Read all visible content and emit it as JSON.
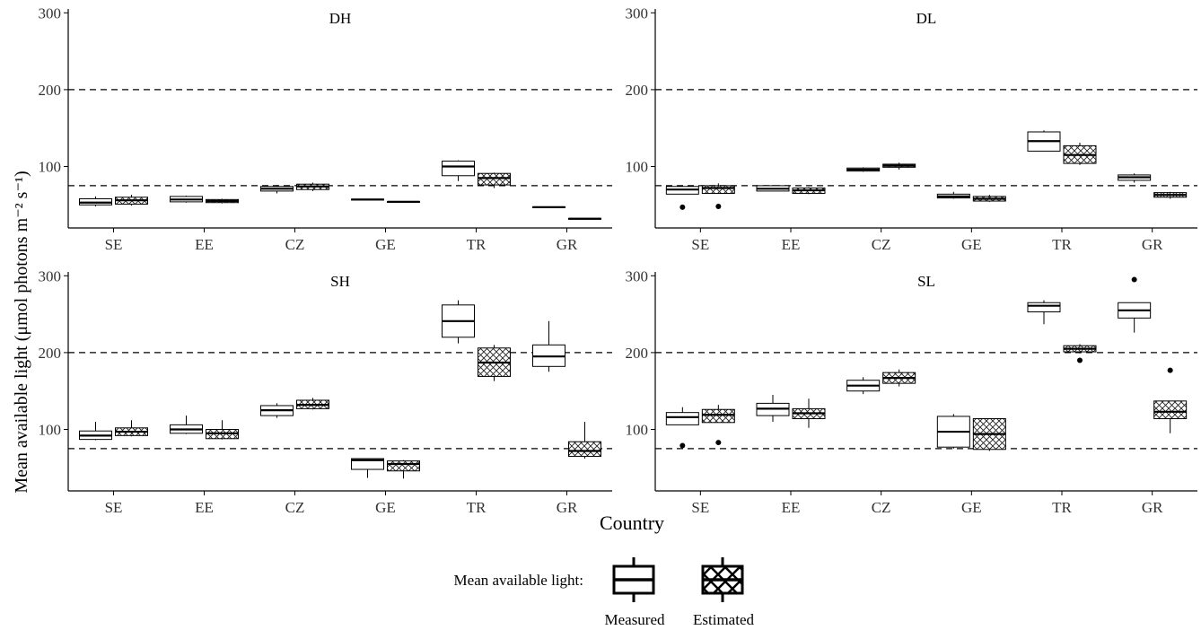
{
  "chart_data": {
    "type": "boxplot",
    "ylabel": "Mean available light (μmol photons m⁻² s⁻¹)",
    "xlabel": "Country",
    "categories": [
      "SE",
      "EE",
      "CZ",
      "GE",
      "TR",
      "GR"
    ],
    "yticks": [
      100,
      200,
      300
    ],
    "ylim": [
      20,
      305
    ],
    "reference_lines": [
      75,
      200
    ],
    "legend": {
      "title": "Mean available light:",
      "entries": [
        {
          "key": "measured",
          "label": "Measured"
        },
        {
          "key": "estimated",
          "label": "Estimated"
        }
      ],
      "placement": "bottom-center"
    },
    "panels": [
      {
        "title": "DH",
        "groups": [
          {
            "cat": "SE",
            "measured": {
              "whislo": 48,
              "q1": 50,
              "med": 53,
              "q3": 58,
              "whishi": 61,
              "outliers": []
            },
            "estimated": {
              "whislo": 49,
              "q1": 51,
              "med": 56,
              "q3": 60,
              "whishi": 63,
              "outliers": []
            }
          },
          {
            "cat": "EE",
            "measured": {
              "whislo": 53,
              "q1": 54,
              "med": 57,
              "q3": 61,
              "whishi": 62,
              "outliers": []
            },
            "estimated": {
              "whislo": 52,
              "q1": 53,
              "med": 55,
              "q3": 57,
              "whishi": 58,
              "outliers": []
            }
          },
          {
            "cat": "CZ",
            "measured": {
              "whislo": 65,
              "q1": 68,
              "med": 71,
              "q3": 74,
              "whishi": 76,
              "outliers": []
            },
            "estimated": {
              "whislo": 68,
              "q1": 70,
              "med": 74,
              "q3": 77,
              "whishi": 79,
              "outliers": []
            }
          },
          {
            "cat": "GE",
            "measured": {
              "whislo": 56,
              "q1": 56.5,
              "med": 57,
              "q3": 57.5,
              "whishi": 58,
              "outliers": []
            },
            "estimated": {
              "whislo": 53,
              "q1": 53.5,
              "med": 54,
              "q3": 54.5,
              "whishi": 55,
              "outliers": []
            }
          },
          {
            "cat": "TR",
            "measured": {
              "whislo": 81,
              "q1": 88,
              "med": 100,
              "q3": 107,
              "whishi": 108,
              "outliers": []
            },
            "estimated": {
              "whislo": 72,
              "q1": 76,
              "med": 85,
              "q3": 91,
              "whishi": 92,
              "outliers": []
            }
          },
          {
            "cat": "GR",
            "measured": {
              "whislo": 46,
              "q1": 46.5,
              "med": 47,
              "q3": 47.5,
              "whishi": 48,
              "outliers": []
            },
            "estimated": {
              "whislo": 31,
              "q1": 31.5,
              "med": 32,
              "q3": 32.5,
              "whishi": 33,
              "outliers": []
            }
          }
        ]
      },
      {
        "title": "DL",
        "groups": [
          {
            "cat": "SE",
            "measured": {
              "whislo": 64,
              "q1": 64,
              "med": 70,
              "q3": 74,
              "whishi": 75,
              "outliers": [
                47
              ]
            },
            "estimated": {
              "whislo": 65,
              "q1": 65,
              "med": 72,
              "q3": 75,
              "whishi": 78,
              "outliers": [
                48
              ]
            }
          },
          {
            "cat": "EE",
            "measured": {
              "whislo": 68,
              "q1": 68,
              "med": 71,
              "q3": 75,
              "whishi": 76,
              "outliers": []
            },
            "estimated": {
              "whislo": 64,
              "q1": 65,
              "med": 69,
              "q3": 72,
              "whishi": 73,
              "outliers": []
            }
          },
          {
            "cat": "CZ",
            "measured": {
              "whislo": 93,
              "q1": 94,
              "med": 96,
              "q3": 98,
              "whishi": 99,
              "outliers": []
            },
            "estimated": {
              "whislo": 96,
              "q1": 99,
              "med": 101,
              "q3": 103,
              "whishi": 105,
              "outliers": []
            }
          },
          {
            "cat": "GE",
            "measured": {
              "whislo": 58,
              "q1": 59,
              "med": 61,
              "q3": 64,
              "whishi": 67,
              "outliers": []
            },
            "estimated": {
              "whislo": 54,
              "q1": 55,
              "med": 58,
              "q3": 61,
              "whishi": 63,
              "outliers": []
            }
          },
          {
            "cat": "TR",
            "measured": {
              "whislo": 120,
              "q1": 120,
              "med": 133,
              "q3": 145,
              "whishi": 147,
              "outliers": []
            },
            "estimated": {
              "whislo": 102,
              "q1": 104,
              "med": 115,
              "q3": 127,
              "whishi": 131,
              "outliers": []
            }
          },
          {
            "cat": "GR",
            "measured": {
              "whislo": 79,
              "q1": 82,
              "med": 86,
              "q3": 89,
              "whishi": 91,
              "outliers": []
            },
            "estimated": {
              "whislo": 58,
              "q1": 60,
              "med": 63,
              "q3": 66,
              "whishi": 67,
              "outliers": []
            }
          }
        ]
      },
      {
        "title": "SH",
        "groups": [
          {
            "cat": "SE",
            "measured": {
              "whislo": 86,
              "q1": 87,
              "med": 92,
              "q3": 98,
              "whishi": 110,
              "outliers": []
            },
            "estimated": {
              "whislo": 91,
              "q1": 92,
              "med": 97,
              "q3": 102,
              "whishi": 112,
              "outliers": []
            }
          },
          {
            "cat": "EE",
            "measured": {
              "whislo": 94,
              "q1": 95,
              "med": 100,
              "q3": 106,
              "whishi": 118,
              "outliers": []
            },
            "estimated": {
              "whislo": 87,
              "q1": 88,
              "med": 95,
              "q3": 100,
              "whishi": 112,
              "outliers": []
            }
          },
          {
            "cat": "CZ",
            "measured": {
              "whislo": 115,
              "q1": 118,
              "med": 125,
              "q3": 131,
              "whishi": 134,
              "outliers": []
            },
            "estimated": {
              "whislo": 126,
              "q1": 127,
              "med": 132,
              "q3": 138,
              "whishi": 141,
              "outliers": []
            }
          },
          {
            "cat": "GE",
            "measured": {
              "whislo": 37,
              "q1": 48,
              "med": 60,
              "q3": 62,
              "whishi": 62,
              "outliers": []
            },
            "estimated": {
              "whislo": 36,
              "q1": 46,
              "med": 55,
              "q3": 59,
              "whishi": 60,
              "outliers": []
            }
          },
          {
            "cat": "TR",
            "measured": {
              "whislo": 212,
              "q1": 220,
              "med": 241,
              "q3": 262,
              "whishi": 268,
              "outliers": []
            },
            "estimated": {
              "whislo": 163,
              "q1": 169,
              "med": 187,
              "q3": 206,
              "whishi": 210,
              "outliers": []
            }
          },
          {
            "cat": "GR",
            "measured": {
              "whislo": 175,
              "q1": 182,
              "med": 195,
              "q3": 210,
              "whishi": 241,
              "outliers": []
            },
            "estimated": {
              "whislo": 62,
              "q1": 65,
              "med": 72,
              "q3": 84,
              "whishi": 110,
              "outliers": []
            }
          }
        ]
      },
      {
        "title": "SL",
        "groups": [
          {
            "cat": "SE",
            "measured": {
              "whislo": 106,
              "q1": 106,
              "med": 116,
              "q3": 122,
              "whishi": 129,
              "outliers": [
                79
              ]
            },
            "estimated": {
              "whislo": 109,
              "q1": 109,
              "med": 119,
              "q3": 126,
              "whishi": 132,
              "outliers": [
                83
              ]
            }
          },
          {
            "cat": "EE",
            "measured": {
              "whislo": 110,
              "q1": 118,
              "med": 127,
              "q3": 134,
              "whishi": 145,
              "outliers": []
            },
            "estimated": {
              "whislo": 102,
              "q1": 114,
              "med": 121,
              "q3": 127,
              "whishi": 140,
              "outliers": []
            }
          },
          {
            "cat": "CZ",
            "measured": {
              "whislo": 146,
              "q1": 150,
              "med": 157,
              "q3": 164,
              "whishi": 168,
              "outliers": []
            },
            "estimated": {
              "whislo": 156,
              "q1": 160,
              "med": 167,
              "q3": 174,
              "whishi": 178,
              "outliers": []
            }
          },
          {
            "cat": "GE",
            "measured": {
              "whislo": 75,
              "q1": 77,
              "med": 97,
              "q3": 117,
              "whishi": 120,
              "outliers": []
            },
            "estimated": {
              "whislo": 72,
              "q1": 74,
              "med": 94,
              "q3": 114,
              "whishi": 114,
              "outliers": []
            }
          },
          {
            "cat": "TR",
            "measured": {
              "whislo": 237,
              "q1": 253,
              "med": 261,
              "q3": 265,
              "whishi": 268,
              "outliers": []
            },
            "estimated": {
              "whislo": 199,
              "q1": 201,
              "med": 205,
              "q3": 209,
              "whishi": 211,
              "outliers": [
                190
              ]
            }
          },
          {
            "cat": "GR",
            "measured": {
              "whislo": 226,
              "q1": 245,
              "med": 255,
              "q3": 265,
              "whishi": 265,
              "outliers": [
                295
              ]
            },
            "estimated": {
              "whislo": 95,
              "q1": 114,
              "med": 123,
              "q3": 137,
              "whishi": 137,
              "outliers": [
                177
              ]
            }
          }
        ]
      }
    ]
  }
}
